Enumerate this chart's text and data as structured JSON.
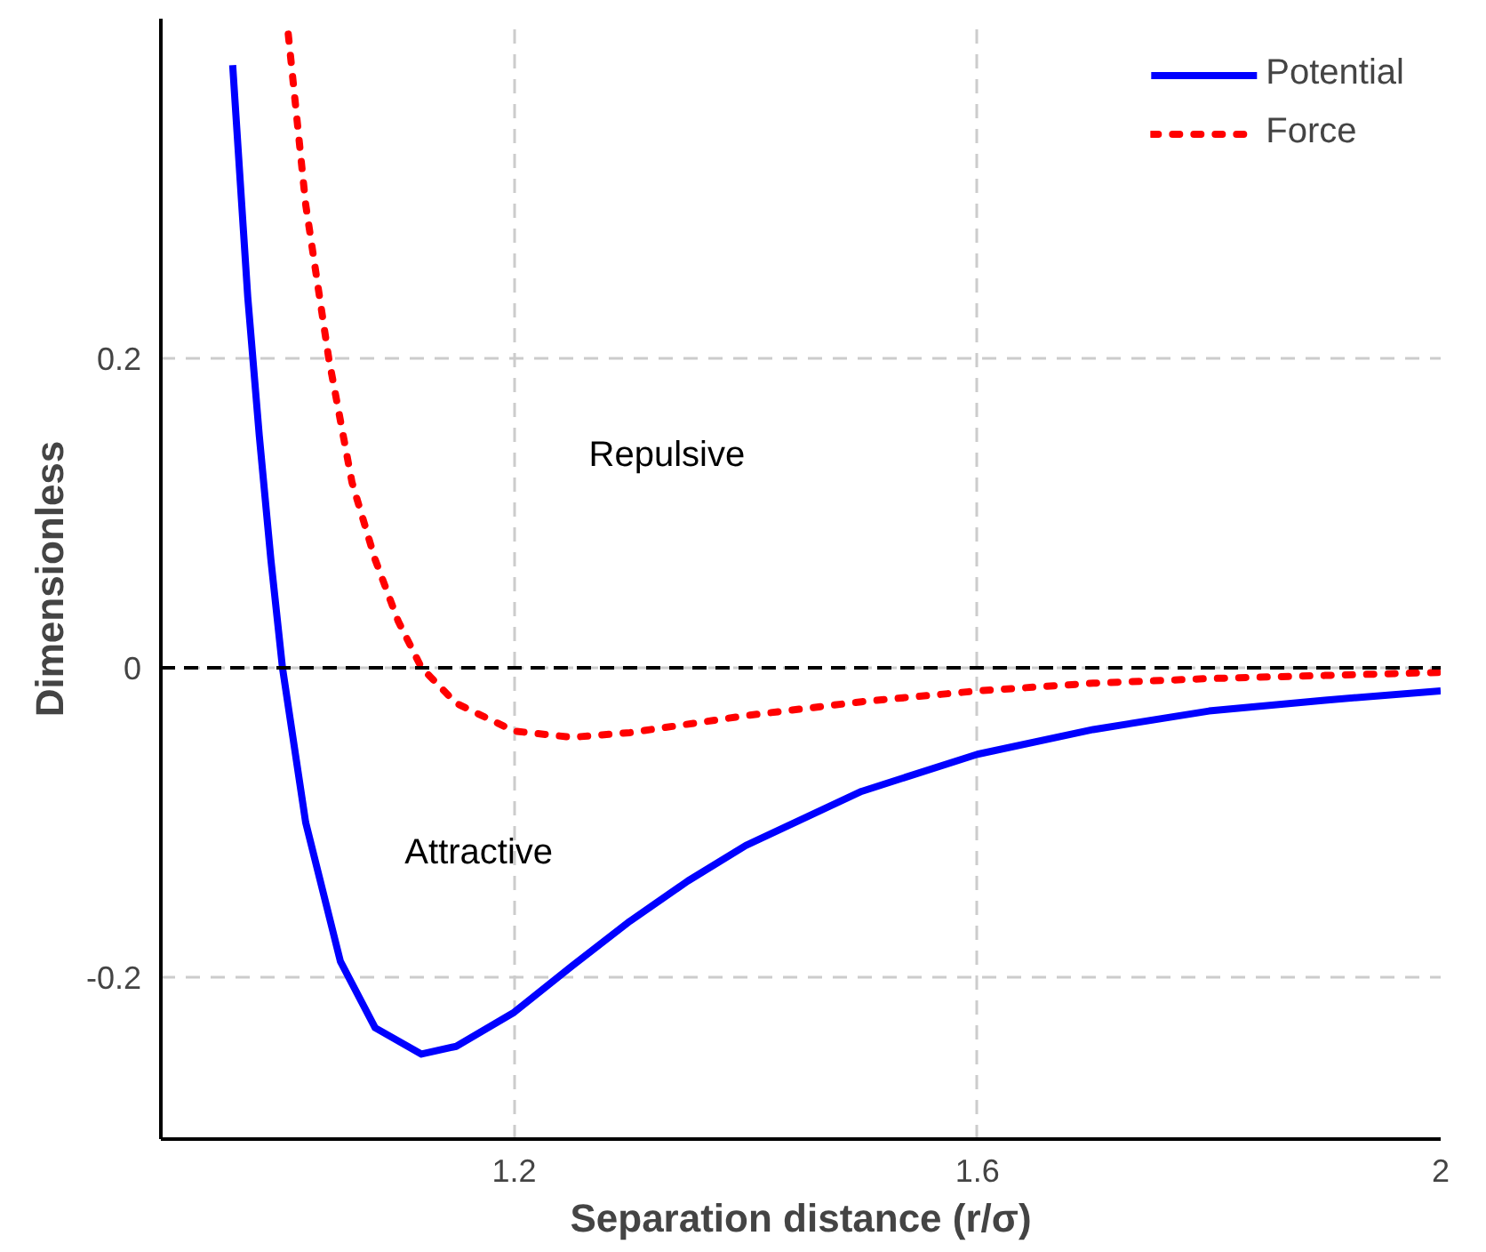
{
  "chart_data": {
    "type": "line",
    "xlabel": "Separation distance (r/σ)",
    "ylabel": "Dimensionless",
    "xlim": [
      0.895,
      2.0
    ],
    "ylim": [
      -0.305,
      0.42
    ],
    "xticks": [
      1.2,
      1.6,
      2
    ],
    "yticks": [
      -0.2,
      0,
      0.2
    ],
    "grid": true,
    "legend": "top right",
    "series": [
      {
        "name": "Potential",
        "color": "#0000ff",
        "line_style": "solid",
        "x": [
          0.957,
          0.97,
          0.98,
          0.99,
          1.0,
          1.02,
          1.05,
          1.08,
          1.12,
          1.15,
          1.2,
          1.25,
          1.3,
          1.35,
          1.4,
          1.5,
          1.6,
          1.7,
          1.8,
          1.9,
          2.0
        ],
        "values": [
          0.39,
          0.24,
          0.15,
          0.07,
          0,
          -0.1,
          -0.19,
          -0.233,
          -0.25,
          -0.245,
          -0.223,
          -0.193,
          -0.164,
          -0.138,
          -0.115,
          -0.08,
          -0.056,
          -0.04,
          -0.028,
          -0.021,
          -0.015
        ]
      },
      {
        "name": "Force",
        "color": "#ff0000",
        "line_style": "dotted",
        "x": [
          1.005,
          1.02,
          1.04,
          1.06,
          1.08,
          1.1,
          1.12,
          1.15,
          1.2,
          1.25,
          1.3,
          1.4,
          1.5,
          1.6,
          1.7,
          1.8,
          1.9,
          2.0
        ],
        "values": [
          0.41,
          0.3,
          0.2,
          0.12,
          0.07,
          0.03,
          0,
          -0.023,
          -0.041,
          -0.045,
          -0.042,
          -0.031,
          -0.022,
          -0.015,
          -0.01,
          -0.007,
          -0.005,
          -0.003
        ]
      }
    ],
    "ref_lines": [
      {
        "axis": "y",
        "value": 0,
        "color": "#000000",
        "line_style": "dashed"
      }
    ],
    "annotations": [
      "Repulsive",
      "Attractive"
    ]
  }
}
